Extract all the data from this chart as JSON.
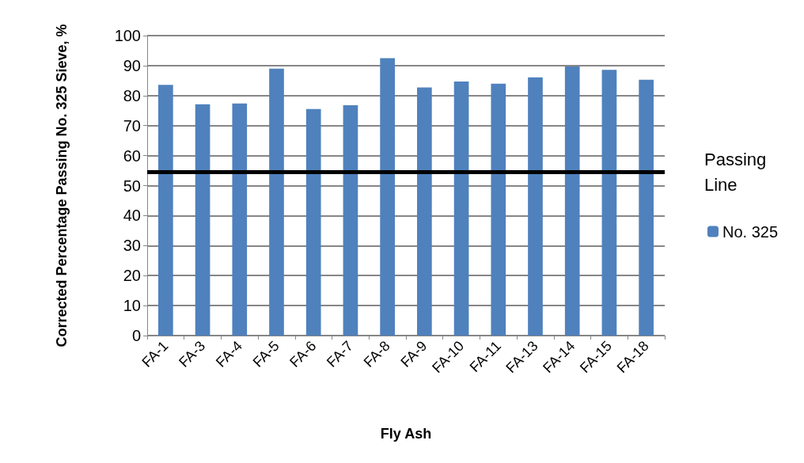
{
  "chart_data": {
    "type": "bar",
    "xlabel": "Fly Ash",
    "ylabel": "Corrected Percentage Passing No. 325 Sieve, %",
    "categories": [
      "FA-1",
      "FA-3",
      "FA-4",
      "FA-5",
      "FA-6",
      "FA-7",
      "FA-8",
      "FA-9",
      "FA-10",
      "FA-11",
      "FA-13",
      "FA-14",
      "FA-15",
      "FA-18"
    ],
    "series": [
      {
        "name": "No. 325",
        "color": "#4f81bd",
        "values": [
          83.6,
          77.1,
          77.4,
          89.0,
          75.5,
          76.8,
          92.5,
          82.7,
          84.7,
          84.0,
          86.1,
          89.7,
          88.6,
          85.3
        ]
      }
    ],
    "ylim": [
      0,
      100
    ],
    "yticks": [
      0,
      10,
      20,
      30,
      40,
      50,
      60,
      70,
      80,
      90,
      100
    ],
    "grid": "y",
    "legend": "right",
    "ref_lines": [
      {
        "axis": "y",
        "value": 54.5,
        "label": "Passing Line",
        "color": "#000000"
      }
    ]
  }
}
